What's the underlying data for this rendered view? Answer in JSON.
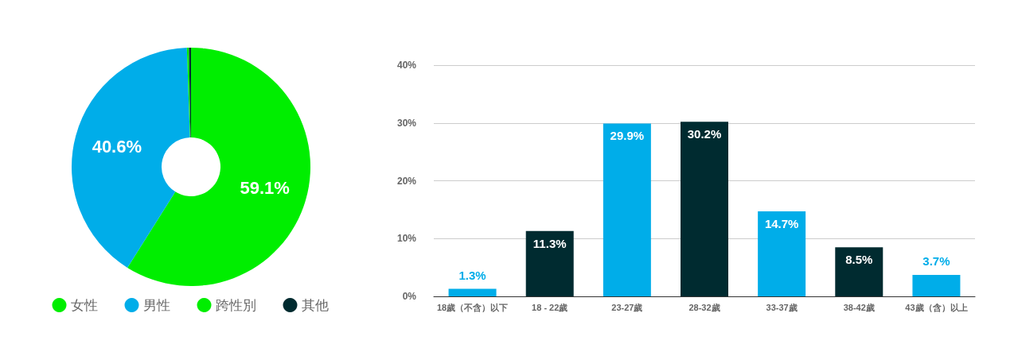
{
  "chart_data": [
    {
      "type": "donut",
      "categories": [
        "女性",
        "男性",
        "跨性別",
        "其他"
      ],
      "values": [
        59.1,
        40.6,
        0.1,
        0.2
      ],
      "colors": [
        "#00ee00",
        "#00ade9",
        "#00ee00",
        "#002b30"
      ],
      "value_labels": [
        "59.1%",
        "40.6%",
        null,
        null
      ],
      "legend": "bottom"
    },
    {
      "type": "bar",
      "categories": [
        "18歲（不含）以下",
        "18 - 22歲",
        "23-27歲",
        "28-32歲",
        "33-37歲",
        "38-42歲",
        "43歲（含）以上"
      ],
      "values": [
        1.3,
        11.3,
        29.9,
        30.2,
        14.7,
        8.5,
        3.7
      ],
      "colors": [
        "#00ade9",
        "#002b30",
        "#00ade9",
        "#002b30",
        "#00ade9",
        "#002b30",
        "#00ade9"
      ],
      "value_labels": [
        "1.3%",
        "11.3%",
        "29.9%",
        "30.2%",
        "14.7%",
        "8.5%",
        "3.7%"
      ],
      "ylim": [
        0,
        40
      ],
      "yticks": [
        {
          "value": 0,
          "label": "0%"
        },
        {
          "value": 10,
          "label": "10%"
        },
        {
          "value": 20,
          "label": "20%"
        },
        {
          "value": 30,
          "label": "30%"
        },
        {
          "value": 40,
          "label": "40%"
        }
      ],
      "grid": "y"
    }
  ]
}
